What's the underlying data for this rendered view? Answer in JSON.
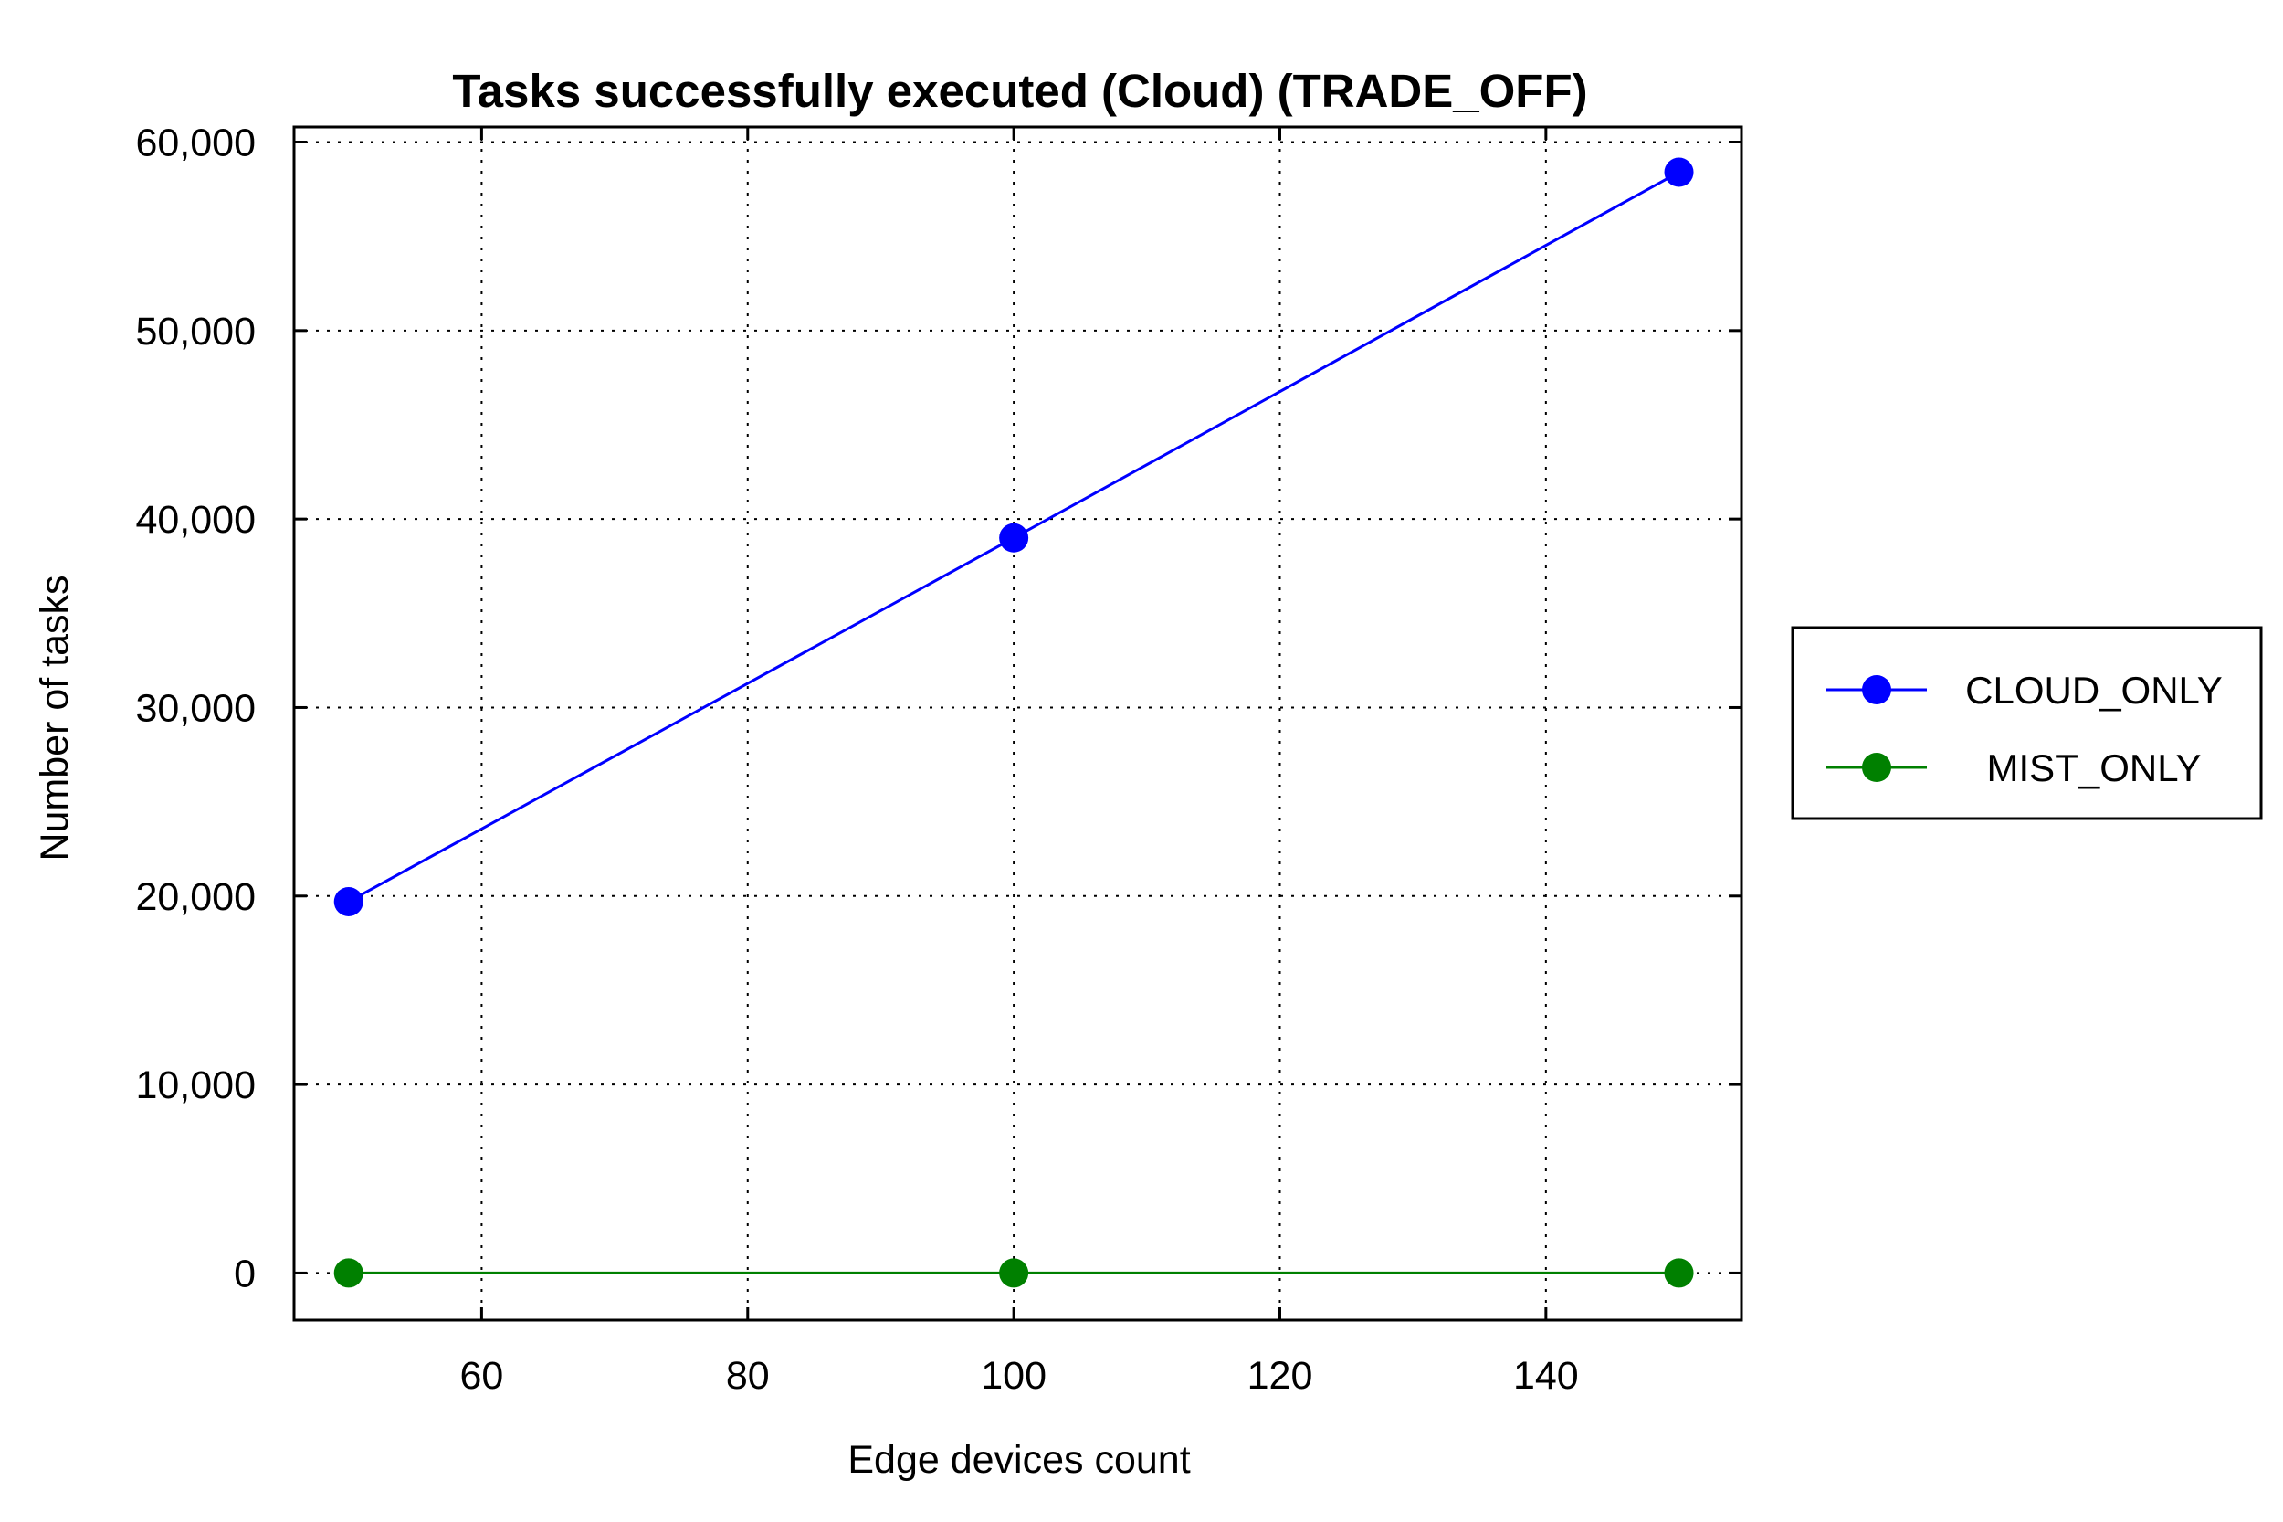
{
  "chart_data": {
    "type": "line",
    "title": "Tasks successfully executed (Cloud) (TRADE_OFF)",
    "xlabel": "Edge devices count",
    "ylabel": "Number of tasks",
    "x": [
      50,
      100,
      150
    ],
    "xlim": [
      45.9,
      154.7
    ],
    "ylim": [
      -2500,
      60800
    ],
    "xticks": [
      60,
      80,
      100,
      120,
      140
    ],
    "xtick_labels": [
      "60",
      "80",
      "100",
      "120",
      "140"
    ],
    "yticks": [
      0,
      10000,
      20000,
      30000,
      40000,
      50000,
      60000
    ],
    "ytick_labels": [
      "0",
      "10,000",
      "20,000",
      "30,000",
      "40,000",
      "50,000",
      "60,000"
    ],
    "grid": true,
    "legend_position": "right",
    "series": [
      {
        "name": "CLOUD_ONLY",
        "color": "#0000ff",
        "values": [
          19700,
          39000,
          58400
        ]
      },
      {
        "name": "MIST_ONLY",
        "color": "#008000",
        "values": [
          0,
          0,
          0
        ]
      }
    ]
  }
}
